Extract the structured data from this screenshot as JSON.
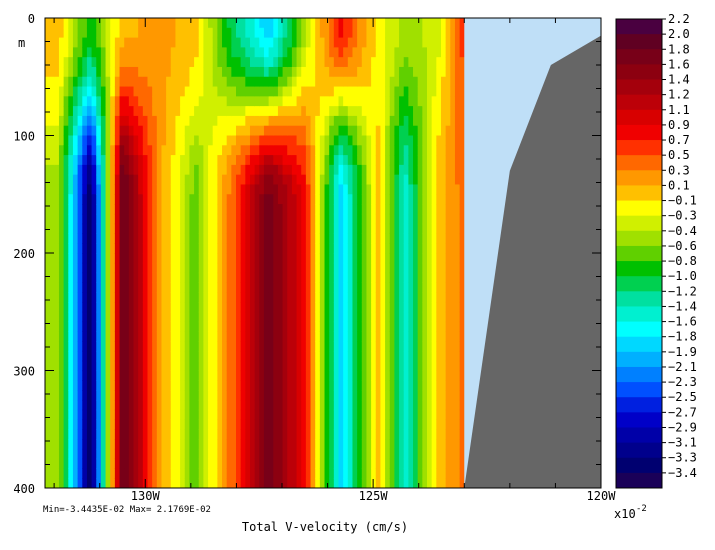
{
  "chart_data": {
    "type": "heatmap",
    "title": "Total V-velocity (cm/s)",
    "stats": "Min=-3.4435E-02  Max= 2.1769E-02",
    "x_axis": {
      "ticks": [
        {
          "value": -130,
          "label": "130W"
        },
        {
          "value": -125,
          "label": "125W"
        },
        {
          "value": -120,
          "label": "120W"
        }
      ],
      "range": [
        -132.2,
        -120
      ]
    },
    "y_axis": {
      "unit_label": "m",
      "ticks": [
        0,
        100,
        200,
        300,
        400
      ],
      "range": [
        0,
        400
      ],
      "inverted": true
    },
    "colorbar": {
      "labels": [
        "2.2",
        "2.0",
        "1.8",
        "1.6",
        "1.4",
        "1.2",
        "1.1",
        "0.9",
        "0.7",
        "0.5",
        "0.3",
        "0.1",
        "-0.1",
        "-0.3",
        "-0.4",
        "-0.6",
        "-0.8",
        "-1.0",
        "-1.2",
        "-1.4",
        "-1.6",
        "-1.8",
        "-1.9",
        "-2.1",
        "-2.3",
        "-2.5",
        "-2.7",
        "-2.9",
        "-3.1",
        "-3.3",
        "-3.4"
      ],
      "colors": [
        "#4a0040",
        "#600022",
        "#780018",
        "#8c0010",
        "#a4000c",
        "#bc0008",
        "#d80000",
        "#f00000",
        "#ff3000",
        "#ff6800",
        "#ff9800",
        "#ffc000",
        "#ffff00",
        "#d0f000",
        "#a0e000",
        "#60d000",
        "#00c000",
        "#00d050",
        "#00e0a0",
        "#00f0d0",
        "#00ffff",
        "#00d8ff",
        "#00b0ff",
        "#0080ff",
        "#0050ff",
        "#0020e0",
        "#0000c8",
        "#0000a8",
        "#00008c",
        "#000070",
        "#1a0058"
      ],
      "scale_label": "x10",
      "scale_exp": "-2"
    },
    "velocity_profile": {
      "lon": [
        -131.9,
        -131.2,
        -130.5,
        -129.7,
        -128.9,
        -128.1,
        -127.3,
        -126.5,
        -125.7,
        -124.9,
        -124.3,
        -123.6,
        -123.0
      ],
      "surface": [
        0.1,
        -0.8,
        0.1,
        0.3,
        0.1,
        -1.0,
        -1.9,
        -0.4,
        0.9,
        -0.1,
        -0.4,
        -0.3,
        0.7
      ],
      "deep": [
        -0.4,
        -3.4,
        2.0,
        0.3,
        -0.6,
        0.5,
        1.8,
        0.9,
        -1.8,
        0.1,
        -1.4,
        0.1,
        0.5
      ]
    },
    "land": {
      "bottom_lon": [
        -123.0,
        -122.0,
        -121.1,
        -120.0
      ],
      "bottom_depth": [
        400,
        130,
        40,
        15
      ]
    }
  }
}
